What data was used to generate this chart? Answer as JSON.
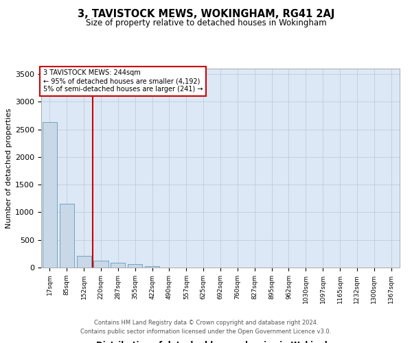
{
  "title": "3, TAVISTOCK MEWS, WOKINGHAM, RG41 2AJ",
  "subtitle": "Size of property relative to detached houses in Wokingham",
  "xlabel": "Distribution of detached houses by size in Wokingham",
  "ylabel": "Number of detached properties",
  "footer_line1": "Contains HM Land Registry data © Crown copyright and database right 2024.",
  "footer_line2": "Contains public sector information licensed under the Open Government Licence v3.0.",
  "annotation_line1": "3 TAVISTOCK MEWS: 244sqm",
  "annotation_line2": "← 95% of detached houses are smaller (4,192)",
  "annotation_line3": "5% of semi-detached houses are larger (241) →",
  "bar_color": "#c8d8e8",
  "bar_edge_color": "#6898b8",
  "red_line_color": "#cc0000",
  "background_color": "#ffffff",
  "plot_bg_color": "#dce8f5",
  "grid_color": "#b8c8d8",
  "categories": [
    "17sqm",
    "85sqm",
    "152sqm",
    "220sqm",
    "287sqm",
    "355sqm",
    "422sqm",
    "490sqm",
    "557sqm",
    "625sqm",
    "692sqm",
    "760sqm",
    "827sqm",
    "895sqm",
    "962sqm",
    "1030sqm",
    "1097sqm",
    "1165sqm",
    "1232sqm",
    "1300sqm",
    "1367sqm"
  ],
  "values": [
    2630,
    1150,
    215,
    130,
    90,
    60,
    25,
    5,
    2,
    1,
    0,
    0,
    0,
    0,
    0,
    0,
    0,
    0,
    0,
    0,
    0
  ],
  "red_line_x": 2.5,
  "ylim": [
    0,
    3600
  ],
  "yticks": [
    0,
    500,
    1000,
    1500,
    2000,
    2500,
    3000,
    3500
  ]
}
